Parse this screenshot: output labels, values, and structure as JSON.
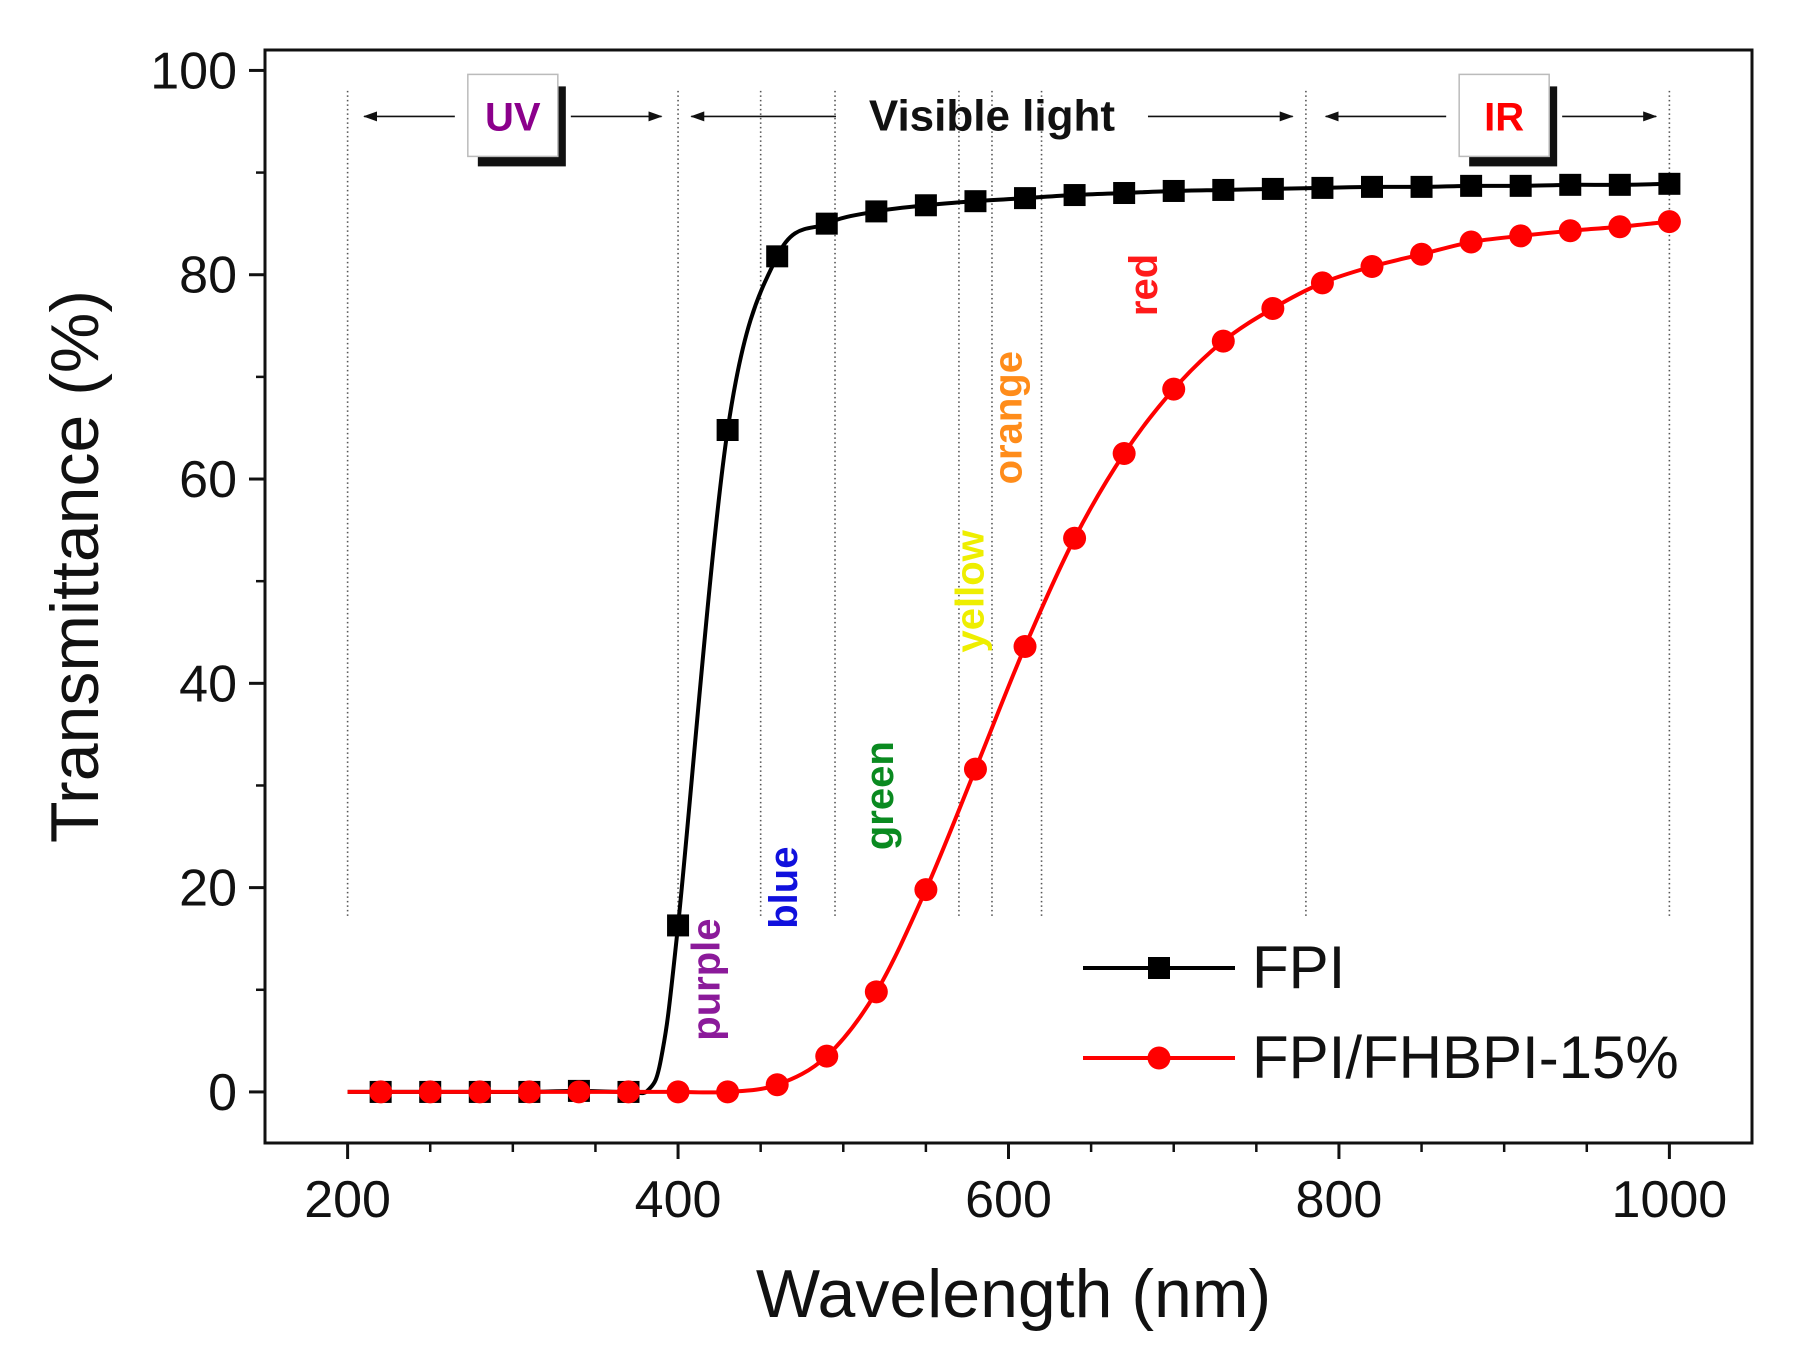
{
  "chart_data": {
    "type": "line",
    "xlabel": "Wavelength (nm)",
    "ylabel": "Transmittance (%)",
    "xlim": [
      150,
      1050
    ],
    "ylim": [
      -5,
      102
    ],
    "x_ticks": [
      200,
      400,
      600,
      800,
      1000
    ],
    "y_ticks": [
      0,
      20,
      40,
      60,
      80,
      100
    ],
    "x_tick_labels": [
      "200",
      "400",
      "600",
      "800",
      "1000"
    ],
    "y_tick_labels": [
      "0",
      "20",
      "40",
      "60",
      "80",
      "100"
    ],
    "region_lines": [
      200,
      400,
      450,
      495,
      570,
      590,
      620,
      780,
      1000
    ],
    "regions": [
      {
        "label": "UV",
        "color": "#8b008b",
        "x": 300,
        "arrow_from": 210,
        "arrow_to": 390
      },
      {
        "label": "Visible light",
        "color": "#111111",
        "x": 590,
        "arrow_from": 408,
        "arrow_to": 772
      },
      {
        "label": "IR",
        "color": "#ff0000",
        "x": 900,
        "arrow_from": 792,
        "arrow_to": 992
      }
    ],
    "color_bands": [
      {
        "label": "purple",
        "color": "#8b1a9a",
        "x": 425,
        "y": 11
      },
      {
        "label": "blue",
        "color": "#1010dd",
        "x": 472,
        "y": 20
      },
      {
        "label": "green",
        "color": "#0a8a20",
        "x": 530,
        "y": 29
      },
      {
        "label": "yellow",
        "color": "#eeee00",
        "x": 585,
        "y": 49
      },
      {
        "label": "orange",
        "color": "#ff8c1a",
        "x": 608,
        "y": 66
      },
      {
        "label": "red",
        "color": "#ff1a1a",
        "x": 690,
        "y": 79
      }
    ],
    "series": [
      {
        "name": "FPI",
        "color": "#000000",
        "marker": "square",
        "x": [
          220,
          250,
          280,
          310,
          340,
          370,
          400,
          430,
          460,
          490,
          520,
          550,
          580,
          610,
          640,
          670,
          700,
          730,
          760,
          790,
          820,
          850,
          880,
          910,
          940,
          970,
          1000
        ],
        "values": [
          0,
          0,
          0,
          0,
          0.1,
          0,
          16.3,
          64.8,
          81.8,
          85.0,
          86.2,
          86.8,
          87.2,
          87.5,
          87.8,
          88.0,
          88.2,
          88.3,
          88.4,
          88.5,
          88.6,
          88.6,
          88.7,
          88.7,
          88.8,
          88.8,
          88.9
        ]
      },
      {
        "name": "FPI/FHBPI-15%",
        "color": "#ff0000",
        "marker": "circle",
        "x": [
          220,
          250,
          280,
          310,
          340,
          370,
          400,
          430,
          460,
          490,
          520,
          550,
          580,
          610,
          640,
          670,
          700,
          730,
          760,
          790,
          820,
          850,
          880,
          910,
          940,
          970,
          1000
        ],
        "values": [
          0,
          0,
          0,
          0,
          0,
          0,
          0,
          0,
          0.7,
          3.5,
          9.8,
          19.8,
          31.6,
          43.6,
          54.2,
          62.5,
          68.8,
          73.5,
          76.7,
          79.2,
          80.8,
          82.0,
          83.2,
          83.8,
          84.3,
          84.7,
          85.2
        ]
      }
    ],
    "legend": {
      "position": "bottom-right",
      "entries": [
        "FPI",
        "FPI/FHBPI-15%"
      ]
    }
  }
}
